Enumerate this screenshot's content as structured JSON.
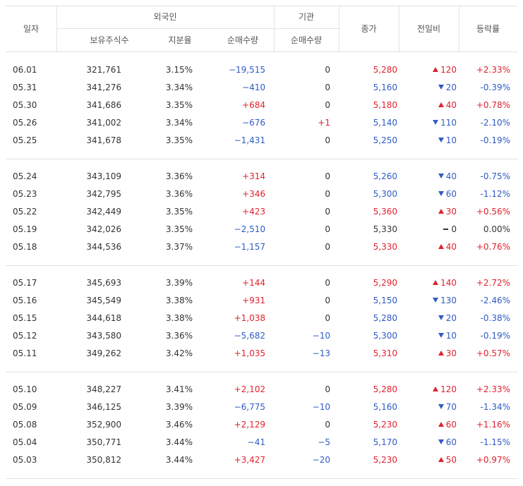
{
  "header": {
    "date": "일자",
    "foreign": "외국인",
    "institution": "기관",
    "shares": "보유주식수",
    "ratio": "지분율",
    "foreign_net": "순매수량",
    "inst_net": "순매수량",
    "close": "종가",
    "change": "전일비",
    "rate": "등락률"
  },
  "groups": [
    [
      {
        "date": "06.01",
        "shares": "321,761",
        "ratio": "3.15%",
        "foreign": "−19,515",
        "inst": "0",
        "close": "5,280",
        "change": "120",
        "dir": "up",
        "rate": "+2.33%"
      },
      {
        "date": "05.31",
        "shares": "341,276",
        "ratio": "3.34%",
        "foreign": "−410",
        "inst": "0",
        "close": "5,160",
        "change": "20",
        "dir": "down",
        "rate": "-0.39%"
      },
      {
        "date": "05.30",
        "shares": "341,686",
        "ratio": "3.35%",
        "foreign": "+684",
        "inst": "0",
        "close": "5,180",
        "change": "40",
        "dir": "up",
        "rate": "+0.78%"
      },
      {
        "date": "05.26",
        "shares": "341,002",
        "ratio": "3.34%",
        "foreign": "−676",
        "inst": "+1",
        "close": "5,140",
        "change": "110",
        "dir": "down",
        "rate": "-2.10%"
      },
      {
        "date": "05.25",
        "shares": "341,678",
        "ratio": "3.35%",
        "foreign": "−1,431",
        "inst": "0",
        "close": "5,250",
        "change": "10",
        "dir": "down",
        "rate": "-0.19%"
      }
    ],
    [
      {
        "date": "05.24",
        "shares": "343,109",
        "ratio": "3.36%",
        "foreign": "+314",
        "inst": "0",
        "close": "5,260",
        "change": "40",
        "dir": "down",
        "rate": "-0.75%"
      },
      {
        "date": "05.23",
        "shares": "342,795",
        "ratio": "3.36%",
        "foreign": "+346",
        "inst": "0",
        "close": "5,300",
        "change": "60",
        "dir": "down",
        "rate": "-1.12%"
      },
      {
        "date": "05.22",
        "shares": "342,449",
        "ratio": "3.35%",
        "foreign": "+423",
        "inst": "0",
        "close": "5,360",
        "change": "30",
        "dir": "up",
        "rate": "+0.56%"
      },
      {
        "date": "05.19",
        "shares": "342,026",
        "ratio": "3.35%",
        "foreign": "−2,510",
        "inst": "0",
        "close": "5,330",
        "change": "0",
        "dir": "flat",
        "rate": "0.00%"
      },
      {
        "date": "05.18",
        "shares": "344,536",
        "ratio": "3.37%",
        "foreign": "−1,157",
        "inst": "0",
        "close": "5,330",
        "change": "40",
        "dir": "up",
        "rate": "+0.76%"
      }
    ],
    [
      {
        "date": "05.17",
        "shares": "345,693",
        "ratio": "3.39%",
        "foreign": "+144",
        "inst": "0",
        "close": "5,290",
        "change": "140",
        "dir": "up",
        "rate": "+2.72%"
      },
      {
        "date": "05.16",
        "shares": "345,549",
        "ratio": "3.38%",
        "foreign": "+931",
        "inst": "0",
        "close": "5,150",
        "change": "130",
        "dir": "down",
        "rate": "-2.46%"
      },
      {
        "date": "05.15",
        "shares": "344,618",
        "ratio": "3.38%",
        "foreign": "+1,038",
        "inst": "0",
        "close": "5,280",
        "change": "20",
        "dir": "down",
        "rate": "-0.38%"
      },
      {
        "date": "05.12",
        "shares": "343,580",
        "ratio": "3.36%",
        "foreign": "−5,682",
        "inst": "−10",
        "close": "5,300",
        "change": "10",
        "dir": "down",
        "rate": "-0.19%"
      },
      {
        "date": "05.11",
        "shares": "349,262",
        "ratio": "3.42%",
        "foreign": "+1,035",
        "inst": "−13",
        "close": "5,310",
        "change": "30",
        "dir": "up",
        "rate": "+0.57%"
      }
    ],
    [
      {
        "date": "05.10",
        "shares": "348,227",
        "ratio": "3.41%",
        "foreign": "+2,102",
        "inst": "0",
        "close": "5,280",
        "change": "120",
        "dir": "up",
        "rate": "+2.33%"
      },
      {
        "date": "05.09",
        "shares": "346,125",
        "ratio": "3.39%",
        "foreign": "−6,775",
        "inst": "−10",
        "close": "5,160",
        "change": "70",
        "dir": "down",
        "rate": "-1.34%"
      },
      {
        "date": "05.08",
        "shares": "352,900",
        "ratio": "3.46%",
        "foreign": "+2,129",
        "inst": "0",
        "close": "5,230",
        "change": "60",
        "dir": "up",
        "rate": "+1.16%"
      },
      {
        "date": "05.04",
        "shares": "350,771",
        "ratio": "3.44%",
        "foreign": "−41",
        "inst": "−5",
        "close": "5,170",
        "change": "60",
        "dir": "down",
        "rate": "-1.15%"
      },
      {
        "date": "05.03",
        "shares": "350,812",
        "ratio": "3.44%",
        "foreign": "+3,427",
        "inst": "−20",
        "close": "5,230",
        "change": "50",
        "dir": "up",
        "rate": "+0.97%"
      }
    ]
  ]
}
